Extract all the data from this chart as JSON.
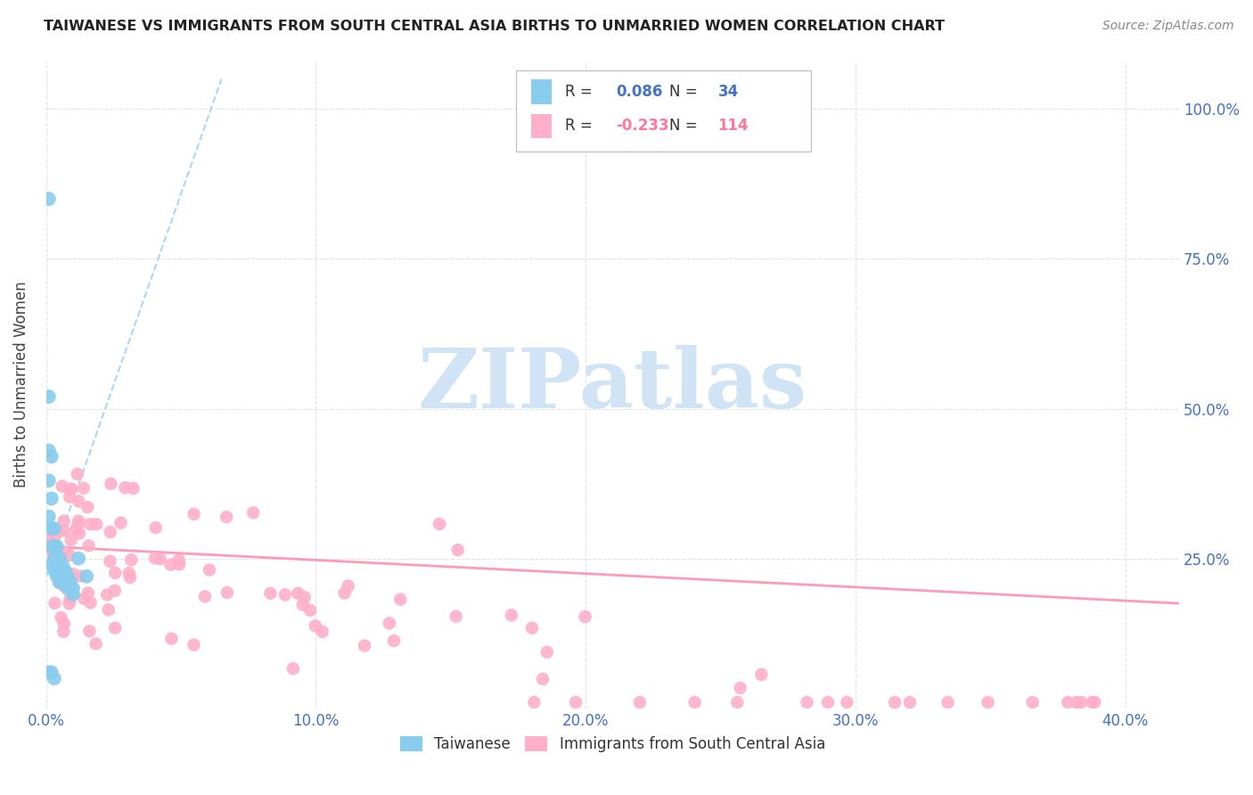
{
  "title": "TAIWANESE VS IMMIGRANTS FROM SOUTH CENTRAL ASIA BIRTHS TO UNMARRIED WOMEN CORRELATION CHART",
  "source": "Source: ZipAtlas.com",
  "ylabel": "Births to Unmarried Women",
  "ytick_labels": [
    "100.0%",
    "75.0%",
    "50.0%",
    "25.0%"
  ],
  "ytick_positions": [
    1.0,
    0.75,
    0.5,
    0.25
  ],
  "xtick_labels": [
    "0.0%",
    "10.0%",
    "20.0%",
    "30.0%",
    "40.0%"
  ],
  "xtick_positions": [
    0.0,
    0.1,
    0.2,
    0.3,
    0.4
  ],
  "xlim": [
    0.0,
    0.42
  ],
  "ylim": [
    0.0,
    1.08
  ],
  "taiwanese_color": "#88CCEE",
  "immigrants_color": "#FFB0C8",
  "trend_taiwanese_color": "#99CCEE",
  "trend_immigrants_color": "#FF8FAF",
  "legend_R_taiwanese": "0.086",
  "legend_N_taiwanese": "34",
  "legend_R_immigrants": "-0.233",
  "legend_N_immigrants": "114",
  "watermark_text": "ZIPatlas",
  "watermark_color": "#D0E4F5",
  "tick_label_color": "#4472C4",
  "title_color": "#222222",
  "source_color": "#888888",
  "legend_blue_color": "#4472C4",
  "legend_pink_color": "#FF7799",
  "grid_color": "#dddddd"
}
